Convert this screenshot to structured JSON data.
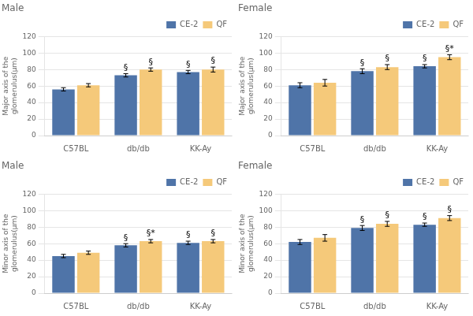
{
  "chart_data": [
    {
      "type": "bar",
      "title": "Male",
      "ylabel": "Major axis of the\nglomerulus(μm)",
      "categories": [
        "C57BL",
        "db/db",
        "KK-Ay"
      ],
      "series": [
        {
          "name": "CE-2",
          "color": "#4F74A8",
          "values": [
            56,
            73,
            77
          ],
          "errors": [
            2,
            2,
            2
          ],
          "annotations": [
            null,
            "§",
            "§"
          ]
        },
        {
          "name": "QF",
          "color": "#F5C97A",
          "values": [
            61,
            80,
            80
          ],
          "errors": [
            2,
            2,
            3
          ],
          "annotations": [
            null,
            "§",
            "§"
          ]
        }
      ],
      "ylim": [
        0,
        120
      ],
      "yticks": [
        0,
        20,
        40,
        60,
        80,
        100,
        120
      ],
      "grid": true,
      "legend": "upper right"
    },
    {
      "type": "bar",
      "title": "Female",
      "ylabel": "Major axis of the\nglomerulus(μm)",
      "categories": [
        "C57BL",
        "db/db",
        "KK-Ay"
      ],
      "series": [
        {
          "name": "CE-2",
          "color": "#4F74A8",
          "values": [
            61,
            78,
            84
          ],
          "errors": [
            3,
            3,
            2
          ],
          "annotations": [
            null,
            "§",
            "§"
          ]
        },
        {
          "name": "QF",
          "color": "#F5C97A",
          "values": [
            64,
            83,
            95
          ],
          "errors": [
            4,
            3,
            3
          ],
          "annotations": [
            null,
            "§",
            "§*"
          ]
        }
      ],
      "ylim": [
        0,
        120
      ],
      "yticks": [
        0,
        20,
        40,
        60,
        80,
        100,
        120
      ],
      "grid": true,
      "legend": "upper right"
    },
    {
      "type": "bar",
      "title": "Male",
      "ylabel": "Minor axis of the\nglomerulus(μm)",
      "categories": [
        "C57BL",
        "db/db",
        "KK-Ay"
      ],
      "series": [
        {
          "name": "CE-2",
          "color": "#4F74A8",
          "values": [
            45,
            58,
            61
          ],
          "errors": [
            2,
            2,
            2
          ],
          "annotations": [
            null,
            "§",
            "§"
          ]
        },
        {
          "name": "QF",
          "color": "#F5C97A",
          "values": [
            49,
            63,
            63
          ],
          "errors": [
            2,
            2,
            2
          ],
          "annotations": [
            null,
            "§*",
            "§"
          ]
        }
      ],
      "ylim": [
        0,
        120
      ],
      "yticks": [
        0,
        20,
        40,
        60,
        80,
        100,
        120
      ],
      "grid": true,
      "legend": "upper right"
    },
    {
      "type": "bar",
      "title": "Female",
      "ylabel": "Minor axis of the\nglomerulus(μm)",
      "categories": [
        "C57BL",
        "db/db",
        "KK-Ay"
      ],
      "series": [
        {
          "name": "CE-2",
          "color": "#4F74A8",
          "values": [
            62,
            79,
            83
          ],
          "errors": [
            3,
            3,
            2
          ],
          "annotations": [
            null,
            "§",
            "§"
          ]
        },
        {
          "name": "QF",
          "color": "#F5C97A",
          "values": [
            67,
            84,
            91
          ],
          "errors": [
            4,
            3,
            3
          ],
          "annotations": [
            null,
            "§",
            "§"
          ]
        }
      ],
      "ylim": [
        0,
        120
      ],
      "yticks": [
        0,
        20,
        40,
        60,
        80,
        100,
        120
      ],
      "grid": true,
      "legend": "upper right"
    }
  ]
}
